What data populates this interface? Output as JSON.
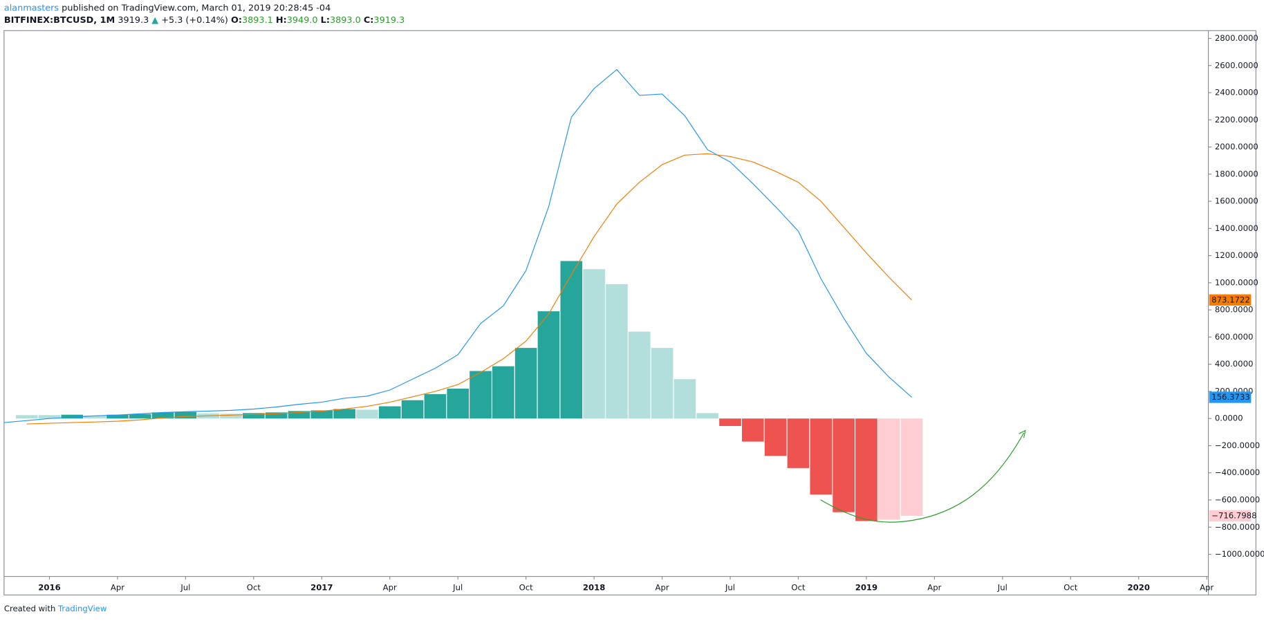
{
  "header": {
    "publisher": "alanmasters",
    "published": "published on TradingView.com, March 01, 2019 20:28:45 -04",
    "symbol": "BITFINEX:BTCUSD, 1M",
    "last": "3919.3",
    "arrow": "▲",
    "change": "+5.3 (+0.14%)",
    "ohlc": [
      {
        "label": "O:",
        "value": "3893.1"
      },
      {
        "label": "H:",
        "value": "3949.0"
      },
      {
        "label": "L:",
        "value": "3893.0"
      },
      {
        "label": "C:",
        "value": "3919.3"
      }
    ]
  },
  "footer": {
    "created": "Created with",
    "brand": "TradingView"
  },
  "chart_data": {
    "type": "macd",
    "x": [
      "2015-11",
      "2015-12",
      "2016-01",
      "2016-02",
      "2016-03",
      "2016-04",
      "2016-05",
      "2016-06",
      "2016-07",
      "2016-08",
      "2016-09",
      "2016-10",
      "2016-11",
      "2016-12",
      "2017-01",
      "2017-02",
      "2017-03",
      "2017-04",
      "2017-05",
      "2017-06",
      "2017-07",
      "2017-08",
      "2017-09",
      "2017-10",
      "2017-11",
      "2017-12",
      "2018-01",
      "2018-02",
      "2018-03",
      "2018-04",
      "2018-05",
      "2018-06",
      "2018-07",
      "2018-08",
      "2018-09",
      "2018-10",
      "2018-11",
      "2018-12",
      "2019-01",
      "2019-02",
      "2019-03"
    ],
    "histogram": {
      "values": [
        null,
        25,
        25,
        28,
        22,
        28,
        33,
        45,
        48,
        38,
        35,
        40,
        45,
        55,
        60,
        70,
        65,
        90,
        135,
        180,
        220,
        350,
        385,
        520,
        790,
        1160,
        1100,
        990,
        640,
        520,
        290,
        40,
        -55,
        -170,
        -275,
        -365,
        -560,
        -690,
        -755,
        -745,
        -716.7988
      ],
      "colors": [
        null,
        "#b2dfdb",
        "#b2dfdb",
        "#26a69a",
        "#b2dfdb",
        "#26a69a",
        "#26a69a",
        "#26a69a",
        "#26a69a",
        "#b2dfdb",
        "#b2dfdb",
        "#26a69a",
        "#26a69a",
        "#26a69a",
        "#26a69a",
        "#26a69a",
        "#b2dfdb",
        "#26a69a",
        "#26a69a",
        "#26a69a",
        "#26a69a",
        "#26a69a",
        "#26a69a",
        "#26a69a",
        "#26a69a",
        "#26a69a",
        "#b2dfdb",
        "#b2dfdb",
        "#b2dfdb",
        "#b2dfdb",
        "#b2dfdb",
        "#b2dfdb",
        "#ef5350",
        "#ef5350",
        "#ef5350",
        "#ef5350",
        "#ef5350",
        "#ef5350",
        "#ef5350",
        "#ffcdd2",
        "#ffcdd2"
      ],
      "last_label": "−716.7988",
      "badge_color": "#ffcdd2"
    },
    "series": [
      {
        "color": "#2196f3",
        "values": [
          -30,
          -15,
          0,
          10,
          20,
          25,
          35,
          45,
          50,
          55,
          60,
          70,
          85,
          105,
          120,
          150,
          165,
          210,
          290,
          370,
          470,
          700,
          830,
          1090,
          1560,
          2220,
          2430,
          2570,
          2380,
          2390,
          2230,
          1980,
          1890,
          1730,
          1560,
          1380,
          1030,
          740,
          480,
          305,
          156.3733
        ],
        "last_label": "156.3733"
      },
      {
        "color": "#f57c00",
        "values": [
          null,
          -40,
          -35,
          -30,
          -25,
          -20,
          -10,
          5,
          15,
          20,
          25,
          30,
          35,
          45,
          55,
          70,
          90,
          120,
          160,
          200,
          250,
          340,
          440,
          570,
          770,
          1060,
          1340,
          1580,
          1740,
          1870,
          1940,
          1950,
          1930,
          1890,
          1820,
          1740,
          1600,
          1410,
          1220,
          1040,
          873.1722
        ],
        "last_label": "873.1722"
      }
    ],
    "xlim": [
      "2015-11",
      "2020-04"
    ],
    "xticks": [
      {
        "value": "2016-01",
        "label": "2016"
      },
      {
        "value": "2016-04",
        "label": "Apr"
      },
      {
        "value": "2016-07",
        "label": "Jul"
      },
      {
        "value": "2016-10",
        "label": "Oct"
      },
      {
        "value": "2017-01",
        "label": "2017"
      },
      {
        "value": "2017-04",
        "label": "Apr"
      },
      {
        "value": "2017-07",
        "label": "Jul"
      },
      {
        "value": "2017-10",
        "label": "Oct"
      },
      {
        "value": "2018-01",
        "label": "2018"
      },
      {
        "value": "2018-04",
        "label": "Apr"
      },
      {
        "value": "2018-07",
        "label": "Jul"
      },
      {
        "value": "2018-10",
        "label": "Oct"
      },
      {
        "value": "2019-01",
        "label": "2019"
      },
      {
        "value": "2019-04",
        "label": "Apr"
      },
      {
        "value": "2019-07",
        "label": "Jul"
      },
      {
        "value": "2019-10",
        "label": "Oct"
      },
      {
        "value": "2020-01",
        "label": "2020"
      },
      {
        "value": "2020-04",
        "label": "Apr"
      }
    ],
    "ylim": [
      -1163,
      2857
    ],
    "yticks": [
      {
        "value": -1000,
        "label": "−1000.0000"
      },
      {
        "value": -800,
        "label": "−800.0000"
      },
      {
        "value": -600,
        "label": "−600.0000"
      },
      {
        "value": -400,
        "label": "−400.0000"
      },
      {
        "value": -200,
        "label": "−200.0000"
      },
      {
        "value": 0,
        "label": "0.0000"
      },
      {
        "value": 200,
        "label": "200.0000"
      },
      {
        "value": 400,
        "label": "400.0000"
      },
      {
        "value": 600,
        "label": "600.0000"
      },
      {
        "value": 800,
        "label": "800.0000"
      },
      {
        "value": 1000,
        "label": "1000.0000"
      },
      {
        "value": 1200,
        "label": "1200.0000"
      },
      {
        "value": 1400,
        "label": "1400.0000"
      },
      {
        "value": 1600,
        "label": "1600.0000"
      },
      {
        "value": 1800,
        "label": "1800.0000"
      },
      {
        "value": 2000,
        "label": "2000.0000"
      },
      {
        "value": 2200,
        "label": "2200.0000"
      },
      {
        "value": 2400,
        "label": "2400.0000"
      },
      {
        "value": 2600,
        "label": "2600.0000"
      },
      {
        "value": 2800,
        "label": "2800.0000"
      }
    ],
    "grid": false
  }
}
